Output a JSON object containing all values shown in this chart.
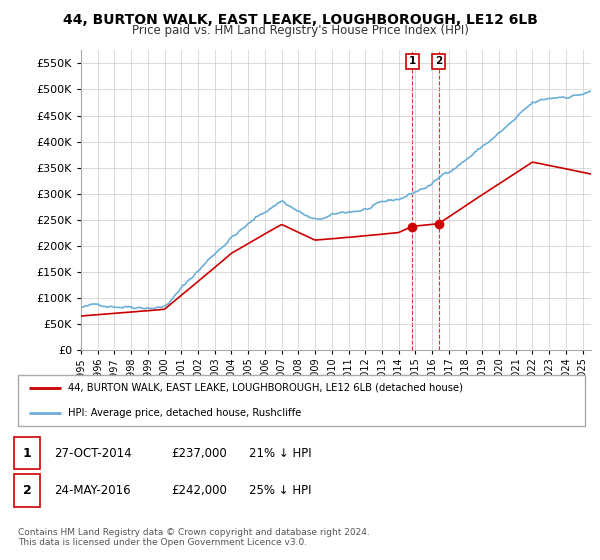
{
  "title": "44, BURTON WALK, EAST LEAKE, LOUGHBOROUGH, LE12 6LB",
  "subtitle": "Price paid vs. HM Land Registry's House Price Index (HPI)",
  "hpi_color": "#6baed6",
  "price_color": "#cc0000",
  "marker1_date_x": 2014.82,
  "marker2_date_x": 2016.38,
  "marker1_price": 237000,
  "marker2_price": 242000,
  "legend_label1": "44, BURTON WALK, EAST LEAKE, LOUGHBOROUGH, LE12 6LB (detached house)",
  "legend_label2": "HPI: Average price, detached house, Rushcliffe",
  "table_row1": [
    "1",
    "27-OCT-2014",
    "£237,000",
    "21% ↓ HPI"
  ],
  "table_row2": [
    "2",
    "24-MAY-2016",
    "£242,000",
    "25% ↓ HPI"
  ],
  "footnote": "Contains HM Land Registry data © Crown copyright and database right 2024.\nThis data is licensed under the Open Government Licence v3.0.",
  "xmin": 1995,
  "xmax": 2025.5,
  "ymin": 0,
  "ymax": 575000,
  "yticks": [
    0,
    50000,
    100000,
    150000,
    200000,
    250000,
    300000,
    350000,
    400000,
    450000,
    500000,
    550000
  ],
  "ytick_labels": [
    "£0",
    "£50K",
    "£100K",
    "£150K",
    "£200K",
    "£250K",
    "£300K",
    "£350K",
    "£400K",
    "£450K",
    "£500K",
    "£550K"
  ],
  "background_color": "#ffffff",
  "grid_color": "#cccccc"
}
